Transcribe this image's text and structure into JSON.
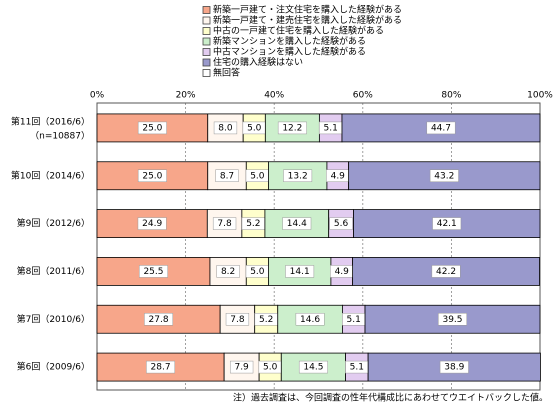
{
  "chart_data": {
    "type": "stacked-bar-horizontal",
    "categories": [
      "第11回（2016/6）",
      "第10回（2014/6）",
      "第9回（2012/6）",
      "第8回（2011/6）",
      "第7回（2010/6）",
      "第6回（2009/6）"
    ],
    "n_label": "（n=10887）",
    "series": [
      {
        "name": "新築一戸建て・注文住宅を購入した経験がある",
        "color": "#F7A68A",
        "values": [
          25.0,
          25.0,
          24.9,
          25.5,
          27.8,
          28.7
        ],
        "value_labels": [
          "25.0",
          "25.0",
          "24.9",
          "25.5",
          "27.8",
          "28.7"
        ]
      },
      {
        "name": "新築一戸建て・建売住宅を購入した経験がある",
        "color": "#FFF6EE",
        "values": [
          8.0,
          8.7,
          7.8,
          8.2,
          7.8,
          7.9
        ],
        "value_labels": [
          "8.0",
          "8.7",
          "7.8",
          "8.2",
          "7.8",
          "7.9"
        ]
      },
      {
        "name": "中古の一戸建て住宅を購入した経験がある",
        "color": "#FFFFCC",
        "values": [
          5.0,
          5.0,
          5.2,
          5.0,
          5.2,
          5.0
        ],
        "value_labels": [
          "5.0",
          "5.0",
          "5.2",
          "5.0",
          "5.2",
          "5.0"
        ]
      },
      {
        "name": "新築マンションを購入した経験がある",
        "color": "#CCEFCC",
        "values": [
          12.2,
          13.2,
          14.4,
          14.1,
          14.6,
          14.5
        ],
        "value_labels": [
          "12.2",
          "13.2",
          "14.4",
          "14.1",
          "14.6",
          "14.5"
        ]
      },
      {
        "name": "中古マンションを購入した経験がある",
        "color": "#E2CCF0",
        "values": [
          5.1,
          4.9,
          5.6,
          4.9,
          5.1,
          5.1
        ],
        "value_labels": [
          "5.1",
          "4.9",
          "5.6",
          "4.9",
          "5.1",
          "5.1"
        ]
      },
      {
        "name": "住宅の購入経験はない",
        "color": "#9999CC",
        "values": [
          44.7,
          43.2,
          42.1,
          42.2,
          39.5,
          38.9
        ],
        "value_labels": [
          "44.7",
          "43.2",
          "42.1",
          "42.2",
          "39.5",
          "38.9"
        ]
      },
      {
        "name": "無回答",
        "color": "#FFFFFF",
        "values": [
          0,
          0,
          0,
          0,
          0,
          0
        ]
      }
    ],
    "xlim": [
      0,
      100
    ],
    "xticks": [
      {
        "value": 0,
        "label": "0%"
      },
      {
        "value": 20,
        "label": "20%"
      },
      {
        "value": 40,
        "label": "40%"
      },
      {
        "value": 60,
        "label": "60%"
      },
      {
        "value": 80,
        "label": "80%"
      },
      {
        "value": 100,
        "label": "100%"
      }
    ],
    "grid": true,
    "note": "注）過去調査は、今回調査の性年代構成比にあわせてウエイトバックした値。"
  }
}
